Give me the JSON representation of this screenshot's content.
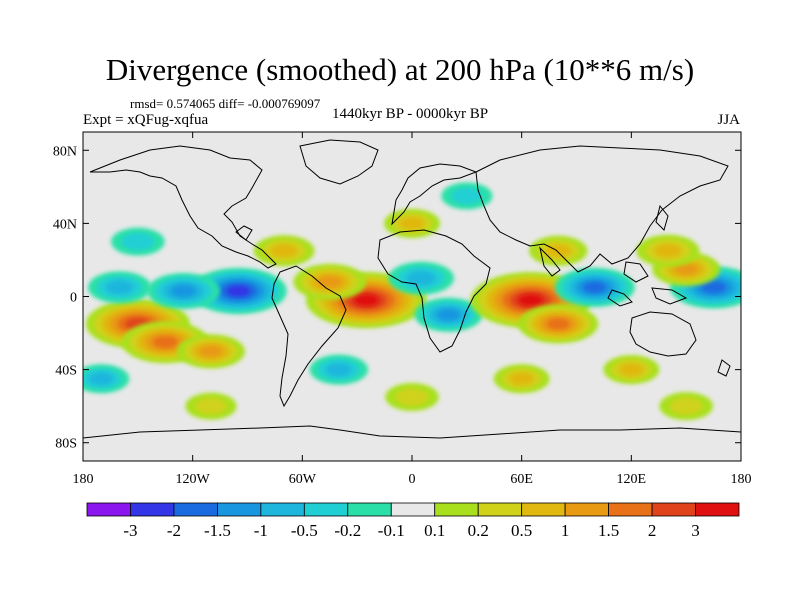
{
  "chart_data": {
    "type": "heatmap",
    "title": "Divergence (smoothed) at 200 hPa (10**6 m/s)",
    "stats": "rmsd= 0.574065 diff= -0.000769097",
    "experiment": "Expt = xQFug-xqfua",
    "period": "1440kyr BP - 0000kyr BP",
    "season": "JJA",
    "x_range": [
      -180,
      180
    ],
    "y_range": [
      -90,
      90
    ],
    "x_ticks": [
      {
        "value": -180,
        "label": "180"
      },
      {
        "value": -120,
        "label": "120W"
      },
      {
        "value": -60,
        "label": "60W"
      },
      {
        "value": 0,
        "label": "0"
      },
      {
        "value": 60,
        "label": "60E"
      },
      {
        "value": 120,
        "label": "120E"
      },
      {
        "value": 180,
        "label": "180"
      }
    ],
    "y_ticks": [
      {
        "value": 80,
        "label": "80N"
      },
      {
        "value": 40,
        "label": "40N"
      },
      {
        "value": 0,
        "label": "0"
      },
      {
        "value": -40,
        "label": "40S"
      },
      {
        "value": -80,
        "label": "80S"
      }
    ],
    "colorbar": {
      "labels": [
        "-3",
        "-2",
        "-1.5",
        "-1",
        "-0.5",
        "-0.2",
        "-0.1",
        "0.1",
        "0.2",
        "0.5",
        "1",
        "1.5",
        "2",
        "3"
      ],
      "colors": [
        "#8b16ee",
        "#3335e6",
        "#1a6be0",
        "#1996e0",
        "#1eb6dc",
        "#20cfd4",
        "#2be0a8",
        "#e8e8e8",
        "#a8e01e",
        "#d0d21a",
        "#e0b810",
        "#e89a12",
        "#e87016",
        "#e0421a",
        "#e01010"
      ]
    },
    "features": [
      {
        "lon": -150,
        "lat": -15,
        "value": 2.5
      },
      {
        "lon": -135,
        "lat": -25,
        "value": 1.8
      },
      {
        "lon": -110,
        "lat": -30,
        "value": 1.0
      },
      {
        "lon": -95,
        "lat": 3,
        "value": -2.2
      },
      {
        "lon": -125,
        "lat": 3,
        "value": -1.2
      },
      {
        "lon": -160,
        "lat": 5,
        "value": -0.8
      },
      {
        "lon": -25,
        "lat": -2,
        "value": 3.2
      },
      {
        "lon": -45,
        "lat": 8,
        "value": 1.2
      },
      {
        "lon": 5,
        "lat": 10,
        "value": -0.9
      },
      {
        "lon": 20,
        "lat": -10,
        "value": -1.0
      },
      {
        "lon": 65,
        "lat": -2,
        "value": 3.2
      },
      {
        "lon": 80,
        "lat": -15,
        "value": 1.5
      },
      {
        "lon": 100,
        "lat": 5,
        "value": -1.5
      },
      {
        "lon": 165,
        "lat": 5,
        "value": -1.8
      },
      {
        "lon": 150,
        "lat": 15,
        "value": 1.0
      },
      {
        "lon": 140,
        "lat": 25,
        "value": 0.8
      },
      {
        "lon": 80,
        "lat": 25,
        "value": 0.6
      },
      {
        "lon": -70,
        "lat": 25,
        "value": 0.7
      },
      {
        "lon": -150,
        "lat": 30,
        "value": -0.4
      },
      {
        "lon": 30,
        "lat": 55,
        "value": -0.3
      },
      {
        "lon": 120,
        "lat": -40,
        "value": 0.5
      },
      {
        "lon": 0,
        "lat": -55,
        "value": 0.4
      },
      {
        "lon": -110,
        "lat": -60,
        "value": 0.3
      },
      {
        "lon": 60,
        "lat": -45,
        "value": 0.5
      },
      {
        "lon": 150,
        "lat": -60,
        "value": 0.4
      },
      {
        "lon": -40,
        "lat": -40,
        "value": -0.6
      },
      {
        "lon": -170,
        "lat": -45,
        "value": -0.5
      },
      {
        "lon": 0,
        "lat": 40,
        "value": 0.5
      }
    ]
  }
}
